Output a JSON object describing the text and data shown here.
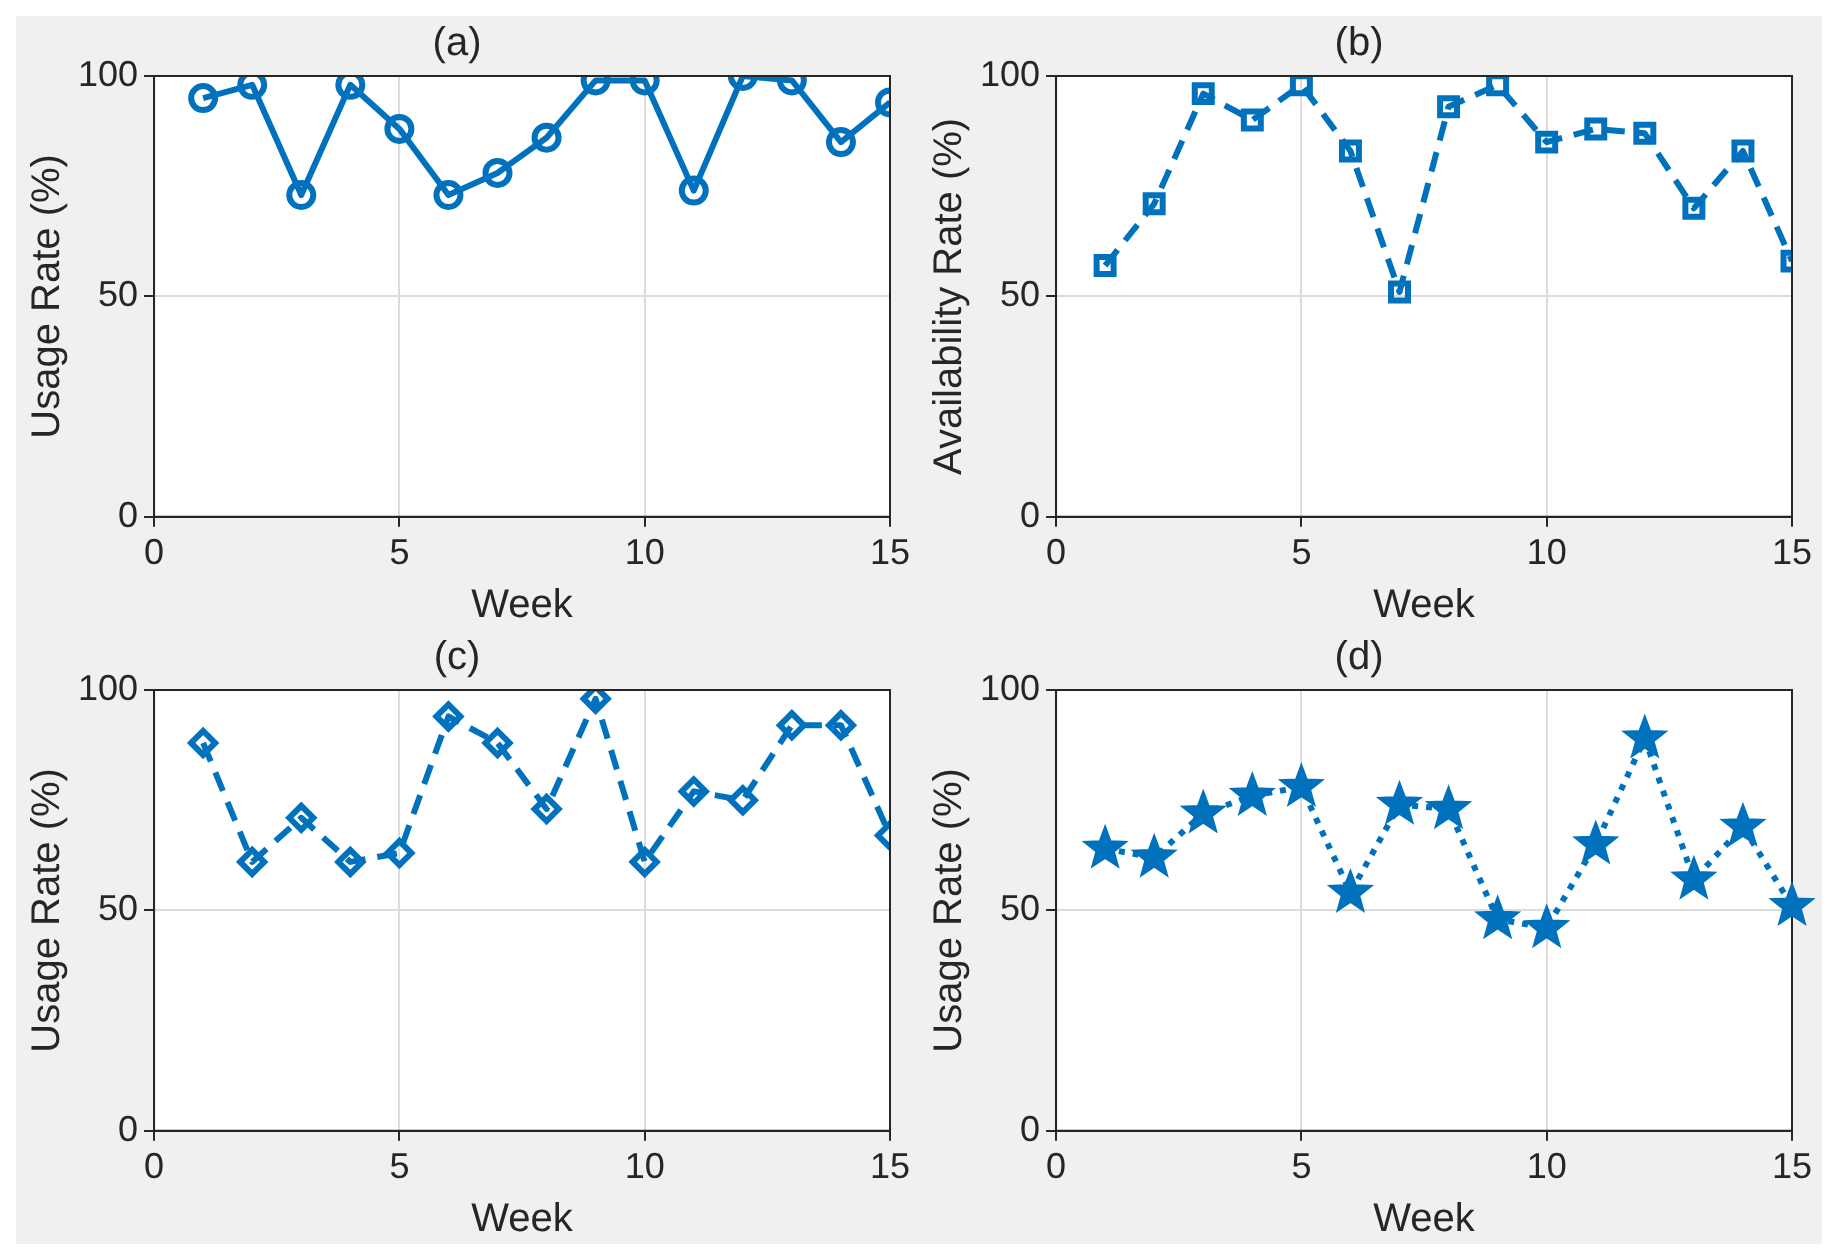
{
  "chart_data": [
    {
      "type": "line",
      "title": "(a)",
      "xlabel": "Week",
      "ylabel": "Usage Rate (%)",
      "x": [
        1,
        2,
        3,
        4,
        5,
        6,
        7,
        8,
        9,
        10,
        11,
        12,
        13,
        14,
        15
      ],
      "series": [
        {
          "color": "#0072bd",
          "values": [
            95,
            98,
            73,
            98,
            88,
            73,
            78,
            86,
            99,
            99,
            74,
            100,
            99,
            85,
            94
          ]
        }
      ],
      "xlim": [
        0,
        15
      ],
      "ylim": [
        0,
        100
      ],
      "xticks": [
        0,
        5,
        10,
        15
      ],
      "yticks": [
        0,
        50,
        100
      ],
      "grid": true,
      "legend": false,
      "marker": "circle",
      "line_style": "solid"
    },
    {
      "type": "line",
      "title": "(b)",
      "xlabel": "Week",
      "ylabel": "Availability Rate (%)",
      "x": [
        1,
        2,
        3,
        4,
        5,
        6,
        7,
        8,
        9,
        10,
        11,
        12,
        13,
        14,
        15
      ],
      "series": [
        {
          "color": "#0072bd",
          "values": [
            57,
            71,
            96,
            90,
            98,
            83,
            51,
            93,
            98,
            85,
            88,
            87,
            70,
            83,
            58
          ]
        }
      ],
      "xlim": [
        0,
        15
      ],
      "ylim": [
        0,
        100
      ],
      "xticks": [
        0,
        5,
        10,
        15
      ],
      "yticks": [
        0,
        50,
        100
      ],
      "grid": true,
      "legend": false,
      "marker": "square",
      "line_style": "dashed"
    },
    {
      "type": "line",
      "title": "(c)",
      "xlabel": "Week",
      "ylabel": "Usage Rate (%)",
      "x": [
        1,
        2,
        3,
        4,
        5,
        6,
        7,
        8,
        9,
        10,
        11,
        12,
        13,
        14,
        15
      ],
      "series": [
        {
          "color": "#0072bd",
          "values": [
            88,
            61,
            71,
            61,
            63,
            94,
            88,
            73,
            98,
            61,
            77,
            75,
            92,
            92,
            67
          ]
        }
      ],
      "xlim": [
        0,
        15
      ],
      "ylim": [
        0,
        100
      ],
      "xticks": [
        0,
        5,
        10,
        15
      ],
      "yticks": [
        0,
        50,
        100
      ],
      "grid": true,
      "legend": false,
      "marker": "diamond",
      "line_style": "dashed"
    },
    {
      "type": "line",
      "title": "(d)",
      "xlabel": "Week",
      "ylabel": "Usage Rate (%)",
      "x": [
        1,
        2,
        3,
        4,
        5,
        6,
        7,
        8,
        9,
        10,
        11,
        12,
        13,
        14,
        15
      ],
      "series": [
        {
          "color": "#0072bd",
          "values": [
            64,
            62,
            72,
            76,
            78,
            54,
            74,
            73,
            48,
            46,
            65,
            89,
            57,
            69,
            51
          ]
        }
      ],
      "xlim": [
        0,
        15
      ],
      "ylim": [
        0,
        100
      ],
      "xticks": [
        0,
        5,
        10,
        15
      ],
      "yticks": [
        0,
        50,
        100
      ],
      "grid": true,
      "legend": false,
      "marker": "star",
      "line_style": "dotted"
    }
  ]
}
